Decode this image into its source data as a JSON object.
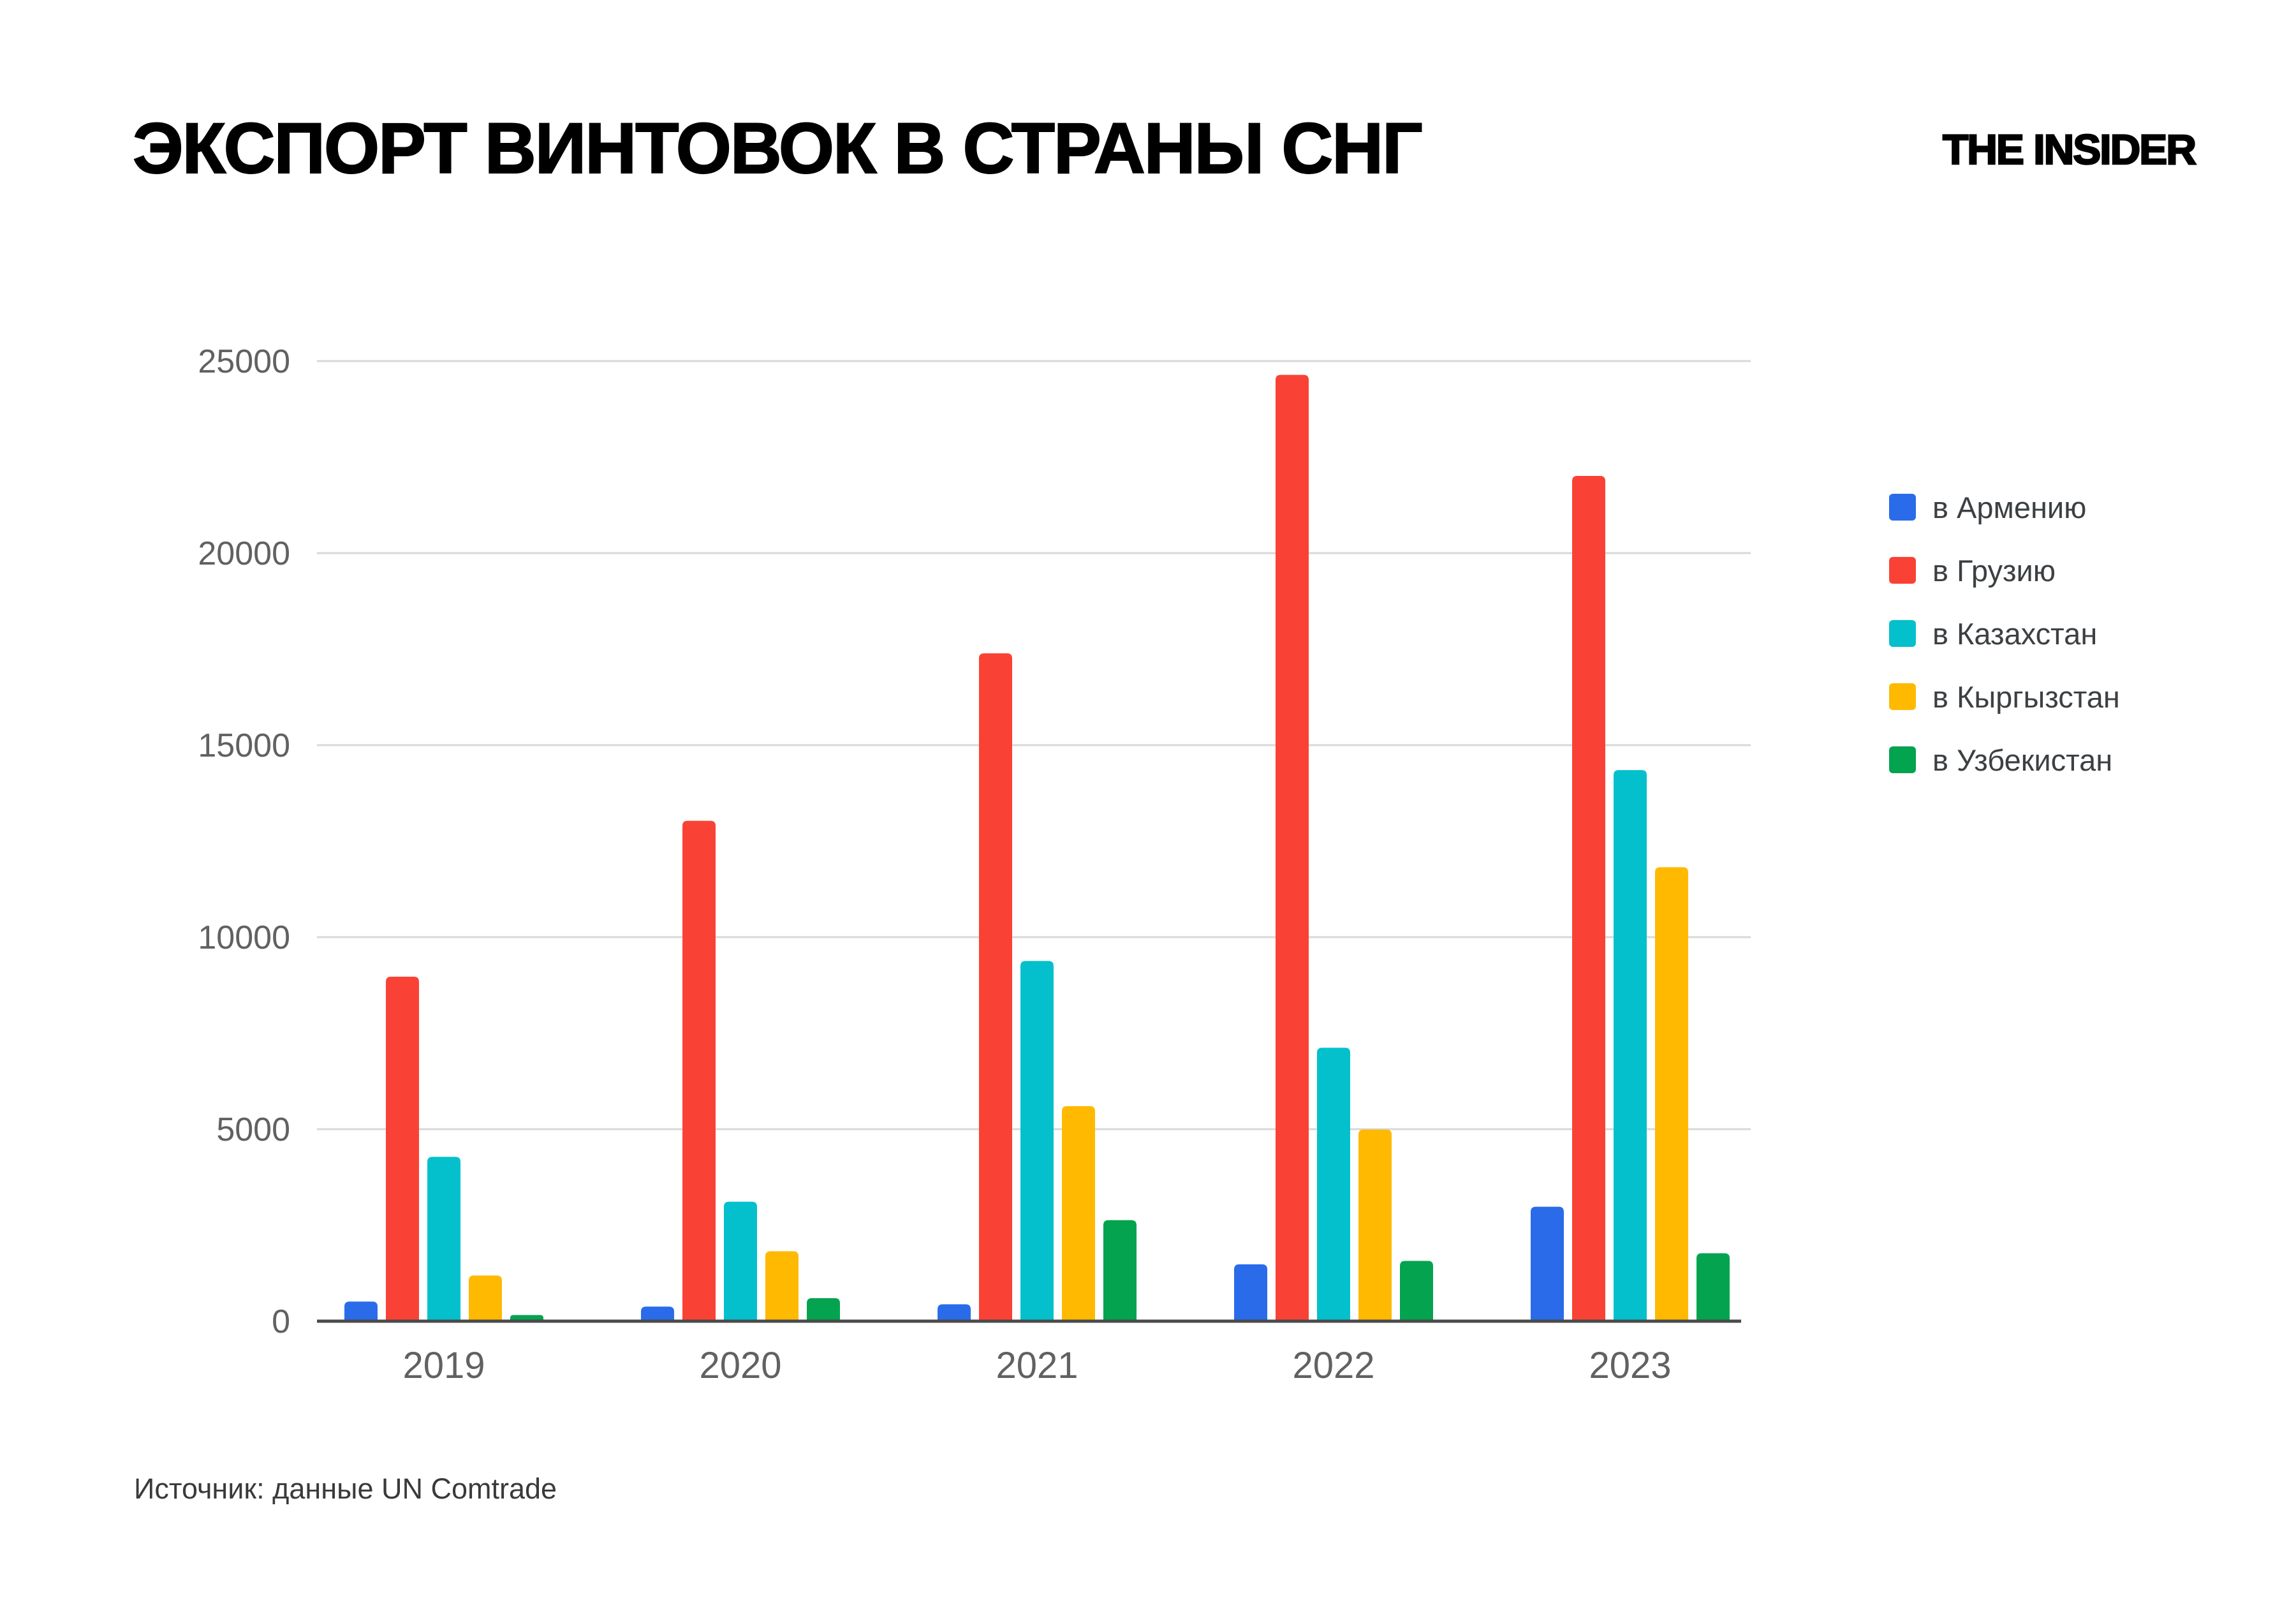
{
  "header": {
    "brand": "THE INSIDER"
  },
  "chart_data": {
    "type": "bar",
    "title": "ЭКСПОРТ ВИНТОВОК В СТРАНЫ СНГ",
    "categories": [
      "2019",
      "2020",
      "2021",
      "2022",
      "2023"
    ],
    "series": [
      {
        "name": "в Армению",
        "color": "#2a6be9",
        "values": [
          510,
          380,
          440,
          1480,
          2980
        ]
      },
      {
        "name": "в Грузию",
        "color": "#f94235",
        "values": [
          8970,
          13030,
          17390,
          24640,
          22010
        ]
      },
      {
        "name": "в Казахстан",
        "color": "#04c0cc",
        "values": [
          4280,
          3110,
          9380,
          7120,
          14350
        ]
      },
      {
        "name": "в Кыргызстан",
        "color": "#ffb900",
        "values": [
          1190,
          1820,
          5600,
          4990,
          11820
        ]
      },
      {
        "name": "в Узбекистан",
        "color": "#04a34f",
        "values": [
          160,
          600,
          2630,
          1570,
          1770
        ]
      }
    ],
    "ylabel": "",
    "xlabel": "",
    "ylim": [
      0,
      25000
    ],
    "yticks": [
      0,
      5000,
      10000,
      15000,
      20000,
      25000
    ],
    "grid": true,
    "legend_position": "right",
    "grid_color": "#d8d8d8",
    "axis_color": "#4a4a4a",
    "tick_label_color": "#616161"
  },
  "source_note": "Источник: данные UN Comtrade"
}
